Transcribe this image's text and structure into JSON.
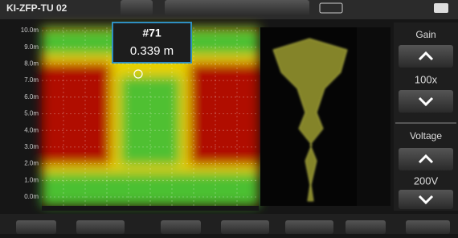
{
  "header": {
    "title": "KI-ZFP-TU 02"
  },
  "cursor": {
    "label": "#71",
    "value": "0.339 m"
  },
  "depth_axis": {
    "labels": [
      "10.0m",
      "9.0m",
      "8.0m",
      "7.0m",
      "6.0m",
      "5.0m",
      "4.0m",
      "3.0m",
      "2.0m",
      "1.0m",
      "0.0m"
    ]
  },
  "side_panel": {
    "gain_label": "Gain",
    "gain_value": "100x",
    "voltage_label": "Voltage",
    "voltage_value": "200V"
  }
}
